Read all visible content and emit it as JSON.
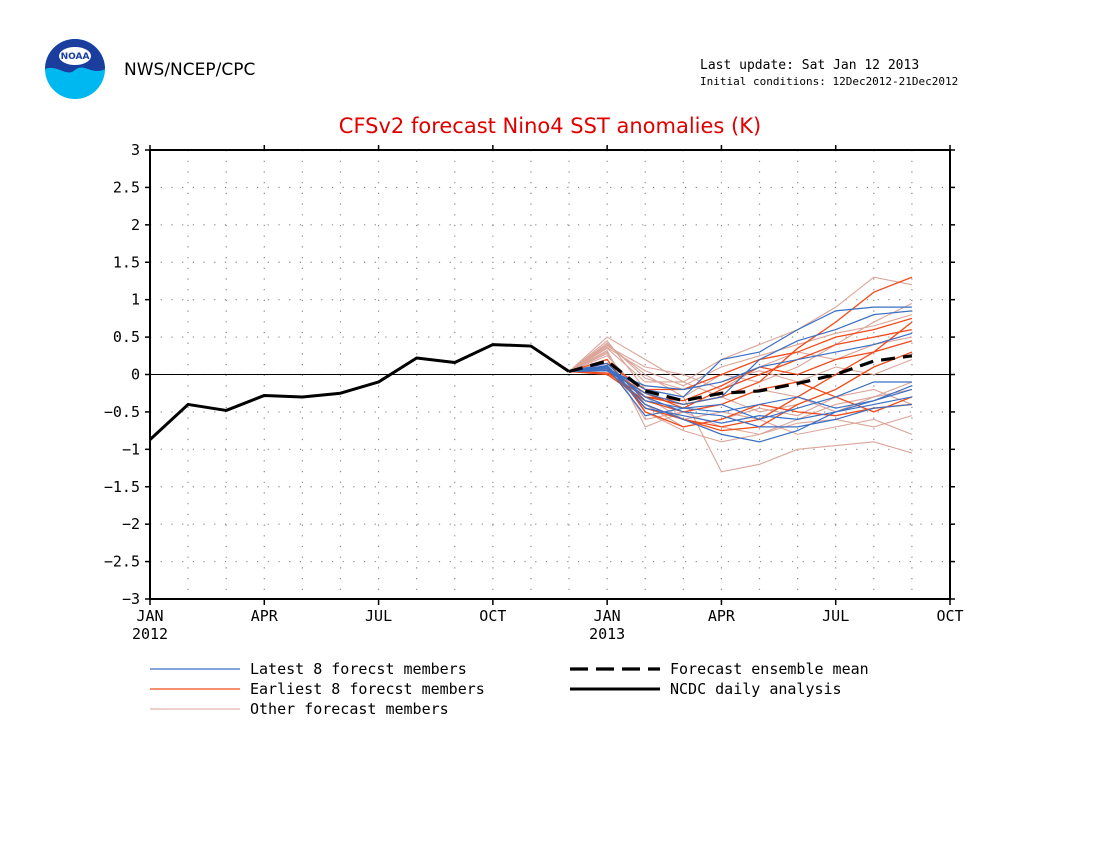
{
  "header": {
    "org": "NWS/NCEP/CPC",
    "logo_text": "NOAA",
    "last_update": "Last update: Sat Jan 12 2013",
    "initial_conditions": "Initial conditions: 12Dec2012-21Dec2012"
  },
  "colors": {
    "title": "#e00000",
    "latest": "#3a6fc4",
    "earliest": "#f04a1a",
    "other": "#dba59a",
    "mean": "#000000",
    "analysis": "#000000"
  },
  "legend": {
    "latest": "Latest 8 forecst members",
    "earliest": "Earliest 8 forecst members",
    "other": "Other forecast members",
    "mean": "Forecast ensemble mean",
    "analysis": "NCDC daily analysis"
  },
  "chart_data": {
    "type": "line",
    "title": "CFSv2 forecast Nino4 SST anomalies (K)",
    "xlabel": "",
    "ylabel": "",
    "ylim": [
      -3,
      3
    ],
    "yticks": [
      3,
      2.5,
      2,
      1.5,
      1,
      0.5,
      0,
      -0.5,
      -1,
      -1.5,
      -2,
      -2.5,
      -3
    ],
    "ytick_labels": [
      "3",
      "2.5",
      "2",
      "1.5",
      "1",
      "0.5",
      "0",
      "−0.5",
      "−1",
      "−1.5",
      "−2",
      "−2.5",
      "−3"
    ],
    "x_range": [
      "2012-01",
      "2013-10"
    ],
    "xticks": [
      {
        "month": "2012-01",
        "label": "JAN",
        "year": "2012"
      },
      {
        "month": "2012-04",
        "label": "APR",
        "year": ""
      },
      {
        "month": "2012-07",
        "label": "JUL",
        "year": ""
      },
      {
        "month": "2012-10",
        "label": "OCT",
        "year": ""
      },
      {
        "month": "2013-01",
        "label": "JAN",
        "year": "2013"
      },
      {
        "month": "2013-04",
        "label": "APR",
        "year": ""
      },
      {
        "month": "2013-07",
        "label": "JUL",
        "year": ""
      },
      {
        "month": "2013-10",
        "label": "OCT",
        "year": ""
      }
    ],
    "grid": true,
    "zero_line": true,
    "forecast_months": [
      "2012-12",
      "2013-01",
      "2013-02",
      "2013-03",
      "2013-04",
      "2013-05",
      "2013-06",
      "2013-07",
      "2013-08",
      "2013-09"
    ],
    "series": [
      {
        "name": "NCDC daily analysis",
        "x": [
          "2012-01",
          "2012-02",
          "2012-03",
          "2012-04",
          "2012-05",
          "2012-06",
          "2012-07",
          "2012-08",
          "2012-09",
          "2012-10",
          "2012-11",
          "2012-12"
        ],
        "values": [
          -0.87,
          -0.4,
          -0.48,
          -0.28,
          -0.3,
          -0.25,
          -0.1,
          0.22,
          0.16,
          0.4,
          0.38,
          0.04
        ]
      },
      {
        "name": "Forecast ensemble mean",
        "x": [
          "2012-12",
          "2013-01",
          "2013-02",
          "2013-03",
          "2013-04",
          "2013-05",
          "2013-06",
          "2013-07",
          "2013-08",
          "2013-09"
        ],
        "values": [
          0.04,
          0.18,
          -0.22,
          -0.35,
          -0.25,
          -0.22,
          -0.12,
          0.0,
          0.18,
          0.25
        ]
      },
      {
        "name": "Latest 8 forecst members",
        "members": [
          [
            0.04,
            0.1,
            -0.3,
            -0.5,
            -0.55,
            -0.7,
            -0.7,
            -0.6,
            -0.45,
            -0.4
          ],
          [
            0.04,
            0.05,
            -0.25,
            -0.4,
            -0.3,
            0.2,
            0.45,
            0.6,
            0.8,
            0.85
          ],
          [
            0.04,
            0.12,
            -0.4,
            -0.6,
            -0.8,
            -0.9,
            -0.75,
            -0.5,
            -0.35,
            -0.2
          ],
          [
            0.04,
            0.08,
            -0.2,
            -0.3,
            0.2,
            0.3,
            0.6,
            0.85,
            0.9,
            0.9
          ],
          [
            0.04,
            0.15,
            -0.35,
            -0.45,
            -0.5,
            -0.4,
            -0.3,
            -0.45,
            -0.35,
            -0.15
          ],
          [
            0.04,
            0.1,
            -0.55,
            -0.45,
            -0.4,
            -0.6,
            -0.45,
            -0.3,
            -0.1,
            -0.1
          ],
          [
            0.04,
            0.06,
            -0.15,
            -0.2,
            -0.1,
            0.1,
            0.2,
            0.3,
            0.4,
            0.55
          ],
          [
            0.04,
            0.11,
            -0.45,
            -0.55,
            -0.65,
            -0.55,
            -0.6,
            -0.5,
            -0.4,
            -0.3
          ]
        ]
      },
      {
        "name": "Earliest 8 forecst members",
        "members": [
          [
            0.04,
            0.1,
            -0.3,
            -0.4,
            -0.3,
            -0.1,
            0.35,
            0.7,
            1.1,
            1.3
          ],
          [
            0.04,
            0.05,
            -0.4,
            -0.6,
            -0.7,
            -0.6,
            -0.3,
            0.0,
            0.3,
            0.7
          ],
          [
            0.04,
            0.15,
            -0.2,
            -0.2,
            0.0,
            0.2,
            0.3,
            0.5,
            0.6,
            0.75
          ],
          [
            0.04,
            0.2,
            -0.5,
            -0.7,
            -0.6,
            -0.4,
            -0.5,
            -0.55,
            -0.45,
            -0.4
          ],
          [
            0.04,
            0.0,
            -0.35,
            -0.5,
            -0.4,
            -0.2,
            -0.1,
            -0.3,
            -0.5,
            -0.3
          ],
          [
            0.04,
            0.08,
            -0.25,
            -0.45,
            -0.2,
            0.0,
            0.2,
            0.4,
            0.5,
            0.6
          ],
          [
            0.04,
            0.12,
            -0.45,
            -0.6,
            -0.75,
            -0.7,
            -0.4,
            -0.2,
            0.1,
            0.3
          ],
          [
            0.04,
            0.02,
            -0.3,
            -0.35,
            -0.15,
            0.1,
            0.0,
            0.2,
            0.3,
            0.45
          ]
        ]
      },
      {
        "name": "Other forecast members",
        "members": [
          [
            0.04,
            0.5,
            0.2,
            -0.1,
            -0.3,
            -0.5,
            -0.4,
            -0.2,
            0.1,
            0.3
          ],
          [
            0.04,
            0.4,
            0.0,
            -0.3,
            -1.3,
            -1.2,
            -1.0,
            -0.95,
            -0.9,
            -1.05
          ],
          [
            0.04,
            0.3,
            -0.5,
            -0.75,
            -0.9,
            -0.8,
            -0.6,
            -0.4,
            -0.3,
            -0.2
          ],
          [
            0.04,
            0.35,
            -0.1,
            -0.1,
            0.2,
            0.4,
            0.6,
            0.9,
            1.3,
            1.2
          ],
          [
            0.04,
            0.25,
            -0.3,
            -0.6,
            -0.5,
            -0.6,
            -0.8,
            -0.7,
            -0.6,
            -0.8
          ],
          [
            0.04,
            0.45,
            -0.2,
            -0.3,
            0.0,
            -0.1,
            0.1,
            0.4,
            0.7,
            0.95
          ],
          [
            0.04,
            0.2,
            -0.6,
            -0.5,
            -0.4,
            -0.2,
            -0.3,
            -0.5,
            -0.3,
            -0.1
          ],
          [
            0.04,
            0.38,
            0.1,
            0.0,
            -0.2,
            0.1,
            0.3,
            0.2,
            0.4,
            0.5
          ],
          [
            0.04,
            0.28,
            -0.4,
            -0.7,
            -0.6,
            -0.45,
            -0.55,
            -0.3,
            -0.2,
            -0.4
          ],
          [
            0.04,
            0.42,
            -0.05,
            -0.2,
            -0.1,
            0.05,
            -0.1,
            0.1,
            0.0,
            0.2
          ],
          [
            0.04,
            0.32,
            -0.7,
            -0.5,
            -0.7,
            -0.8,
            -0.65,
            -0.6,
            -0.7,
            -0.55
          ],
          [
            0.04,
            0.36,
            0.05,
            -0.15,
            0.1,
            0.25,
            0.4,
            0.55,
            0.65,
            0.8
          ]
        ]
      }
    ]
  }
}
